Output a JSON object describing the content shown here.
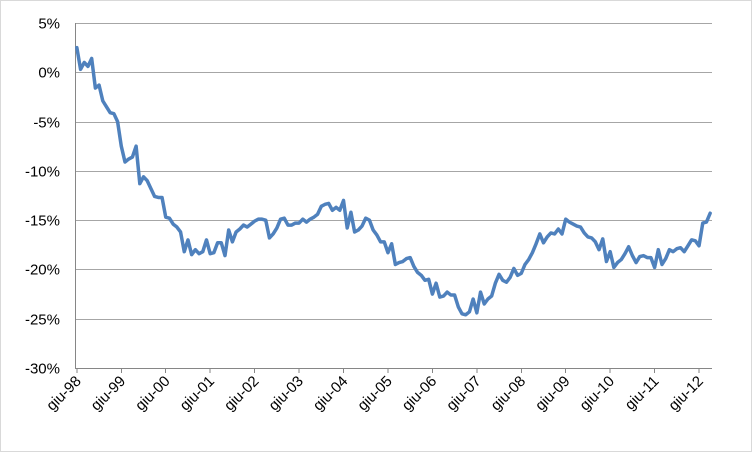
{
  "chart_data": {
    "type": "line",
    "title": "",
    "xlabel": "",
    "ylabel": "",
    "y_tick_labels": [
      "5%",
      "0%",
      "-5%",
      "-10%",
      "-15%",
      "-20%",
      "-25%",
      "-30%"
    ],
    "x_tick_labels": [
      "giu-98",
      "giu-99",
      "giu-00",
      "giu-01",
      "giu-02",
      "giu-03",
      "giu-04",
      "giu-05",
      "giu-06",
      "giu-07",
      "giu-08",
      "giu-09",
      "giu-10",
      "giu-11",
      "giu-12"
    ],
    "ylim": [
      -30,
      5
    ],
    "y_unit": "%",
    "grid": true,
    "legend": "none",
    "series": [
      {
        "color": "#4f81bd",
        "x_start": "giu-98",
        "x_frequency": "monthly",
        "values": [
          2.5,
          0.3,
          1.0,
          0.6,
          1.4,
          -1.6,
          -1.3,
          -2.9,
          -3.5,
          -4.1,
          -4.2,
          -5.0,
          -7.5,
          -9.1,
          -8.8,
          -8.6,
          -7.5,
          -11.3,
          -10.6,
          -11.0,
          -11.8,
          -12.6,
          -12.7,
          -12.7,
          -14.7,
          -14.8,
          -15.4,
          -15.7,
          -16.2,
          -18.2,
          -17.0,
          -18.5,
          -18.0,
          -18.4,
          -18.2,
          -17.0,
          -18.4,
          -18.3,
          -17.3,
          -17.3,
          -18.6,
          -16.0,
          -17.2,
          -16.2,
          -15.9,
          -15.5,
          -15.7,
          -15.4,
          -15.1,
          -14.9,
          -14.9,
          -15.0,
          -16.8,
          -16.4,
          -15.8,
          -14.9,
          -14.8,
          -15.5,
          -15.5,
          -15.3,
          -15.3,
          -14.9,
          -15.2,
          -14.9,
          -14.7,
          -14.4,
          -13.6,
          -13.4,
          -13.3,
          -14.0,
          -13.7,
          -14.0,
          -13.0,
          -15.8,
          -14.2,
          -16.2,
          -16.0,
          -15.6,
          -14.8,
          -15.0,
          -16.0,
          -16.5,
          -17.2,
          -17.2,
          -18.3,
          -17.4,
          -19.5,
          -19.3,
          -19.2,
          -18.9,
          -18.8,
          -19.7,
          -20.3,
          -20.6,
          -21.1,
          -21.0,
          -22.5,
          -21.4,
          -22.8,
          -22.7,
          -22.3,
          -22.6,
          -22.6,
          -23.8,
          -24.5,
          -24.6,
          -24.3,
          -23.0,
          -24.4,
          -22.3,
          -23.5,
          -23.0,
          -22.7,
          -21.4,
          -20.5,
          -21.1,
          -21.3,
          -20.8,
          -19.9,
          -20.6,
          -20.4,
          -19.5,
          -19.0,
          -18.3,
          -17.4,
          -16.4,
          -17.3,
          -16.7,
          -16.3,
          -16.4,
          -15.9,
          -16.4,
          -14.9,
          -15.2,
          -15.4,
          -15.6,
          -15.7,
          -16.3,
          -16.7,
          -16.8,
          -17.2,
          -18.0,
          -16.9,
          -19.2,
          -18.2,
          -19.8,
          -19.3,
          -19.0,
          -18.4,
          -17.7,
          -18.6,
          -19.3,
          -18.7,
          -18.6,
          -18.8,
          -18.8,
          -19.8,
          -18.0,
          -19.5,
          -18.9,
          -18.0,
          -18.2,
          -17.9,
          -17.8,
          -18.2,
          -17.6,
          -17.0,
          -17.1,
          -17.6,
          -15.3,
          -15.2,
          -14.3
        ]
      }
    ]
  }
}
